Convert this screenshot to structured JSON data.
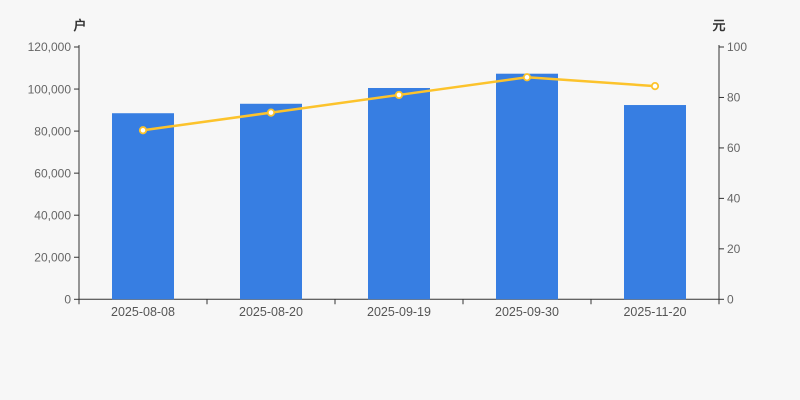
{
  "page": {
    "background": "#f7f7f7"
  },
  "chart_data": {
    "type": "bar",
    "subtype": "bar-with-line-dual-axis",
    "categories": [
      "2025-08-08",
      "2025-08-20",
      "2025-09-19",
      "2025-09-30",
      "2025-11-20"
    ],
    "series": [
      {
        "type": "bar",
        "axis": "left",
        "values": [
          88500,
          93000,
          100500,
          107300,
          92400
        ],
        "color": "#377ee2"
      },
      {
        "type": "line",
        "axis": "right",
        "values": [
          67,
          74,
          81,
          88,
          84.5
        ],
        "color": "#fcc32c",
        "point_fill": "#ffffff"
      }
    ],
    "left_axis": {
      "unit": "户",
      "min": 0,
      "max": 120000,
      "tick_step": 20000,
      "tick_labels": [
        "0",
        "20,000",
        "40,000",
        "60,000",
        "80,000",
        "100,000",
        "120,000"
      ]
    },
    "right_axis": {
      "unit": "元",
      "min": 0,
      "max": 100,
      "tick_step": 20,
      "tick_labels": [
        "0",
        "20",
        "40",
        "60",
        "80",
        "100"
      ]
    },
    "title": "",
    "legend": false,
    "grid": false
  },
  "colors": {
    "background": "#f7f7f7",
    "bar": "#377ee2",
    "line": "#fcc32c",
    "point_fill": "#ffffff",
    "axis_line": "#333333",
    "y_tick_text": "#666666",
    "x_tick_text": "#555555",
    "unit_text": "#333333"
  }
}
